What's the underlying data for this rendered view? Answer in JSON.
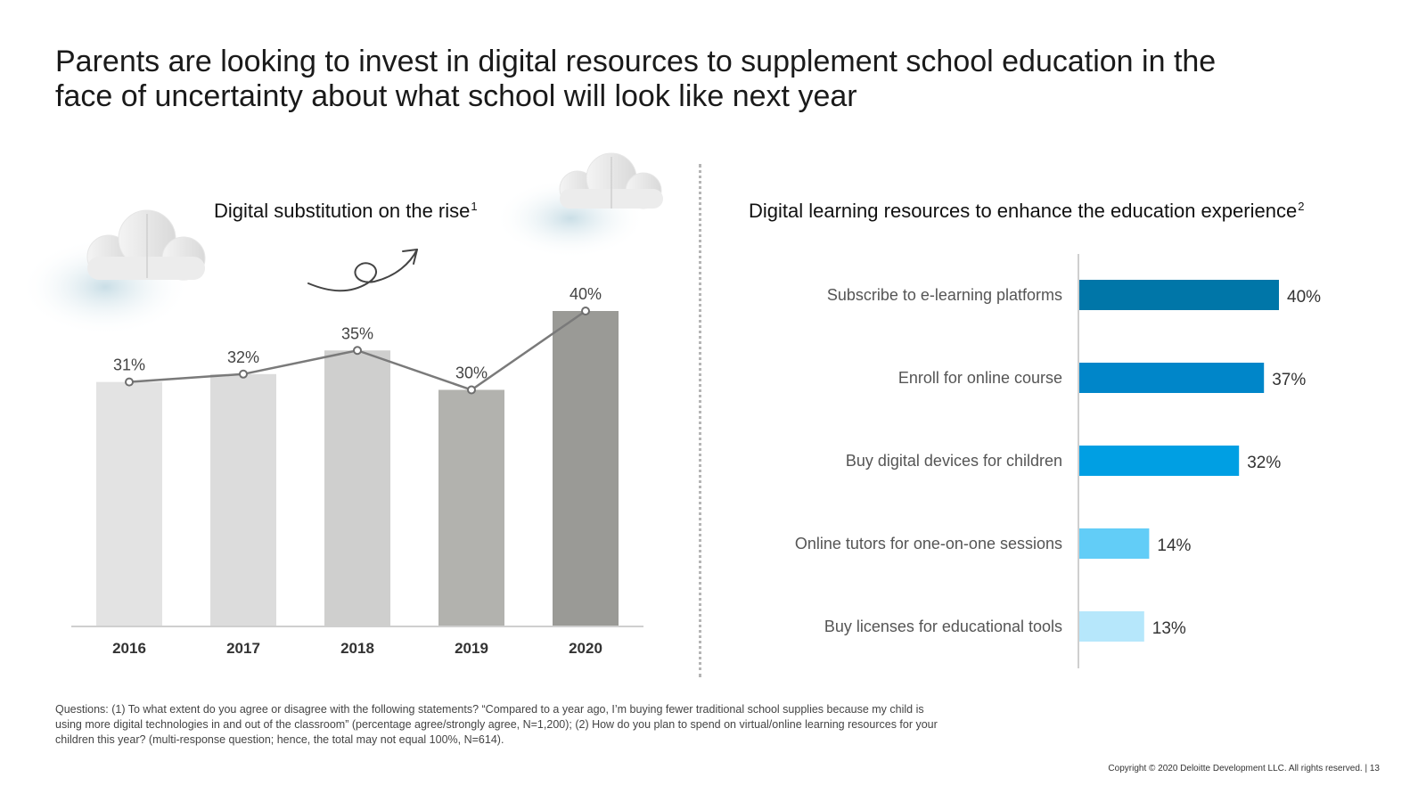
{
  "slide": {
    "title": "Parents are looking to invest in digital resources to supplement school education in the\nface of uncertainty about what school will look like next year",
    "footnote": "Questions: (1) To what extent do you agree or disagree with the following statements? “Compared to a year ago, I’m buying fewer traditional school supplies because my child is using more digital technologies in and out of the classroom” (percentage agree/strongly agree, N=1,200); (2) How do you plan to spend on virtual/online learning resources for your children this year? (multi-response question; hence, the total may not equal 100%, N=614).",
    "copyright": "Copyright © 2020 Deloitte Development LLC. All rights reserved.  |  13"
  },
  "left_chart": {
    "title": "Digital substitution on the rise",
    "footnote_marker": "1"
  },
  "right_chart": {
    "title": "Digital learning resources to enhance the education experience",
    "footnote_marker": "2"
  },
  "decor": {
    "icons": [
      "cloud-icon",
      "cloud-icon",
      "upward-swirl-arrow-icon"
    ]
  },
  "chart_data": [
    {
      "type": "bar",
      "overlay": "line",
      "categories": [
        "2016",
        "2017",
        "2018",
        "2019",
        "2020"
      ],
      "values": [
        31,
        32,
        35,
        30,
        40
      ],
      "data_labels": [
        "31%",
        "32%",
        "35%",
        "30%",
        "40%"
      ],
      "unit": "%",
      "title": "Digital substitution on the rise",
      "ylim": [
        0,
        40
      ],
      "grid": false,
      "bar_colors": [
        "#e3e3e3",
        "#dcdcdc",
        "#cfcfce",
        "#b2b2ae",
        "#9a9a96"
      ],
      "line_color": "#7a7a7a"
    },
    {
      "type": "bar",
      "orientation": "horizontal",
      "categories": [
        "Subscribe to e-learning platforms",
        "Enroll for online course",
        "Buy digital devices for children",
        "Online tutors for one-on-one sessions",
        "Buy licenses for educational tools"
      ],
      "values": [
        40,
        37,
        32,
        14,
        13
      ],
      "data_labels": [
        "40%",
        "37%",
        "32%",
        "14%",
        "13%"
      ],
      "unit": "%",
      "title": "Digital learning resources to enhance the education experience",
      "xlim": [
        0,
        40
      ],
      "grid": false,
      "bar_colors": [
        "#0076a8",
        "#0086c9",
        "#009fe3",
        "#62cdf7",
        "#b6e7fb"
      ]
    }
  ]
}
